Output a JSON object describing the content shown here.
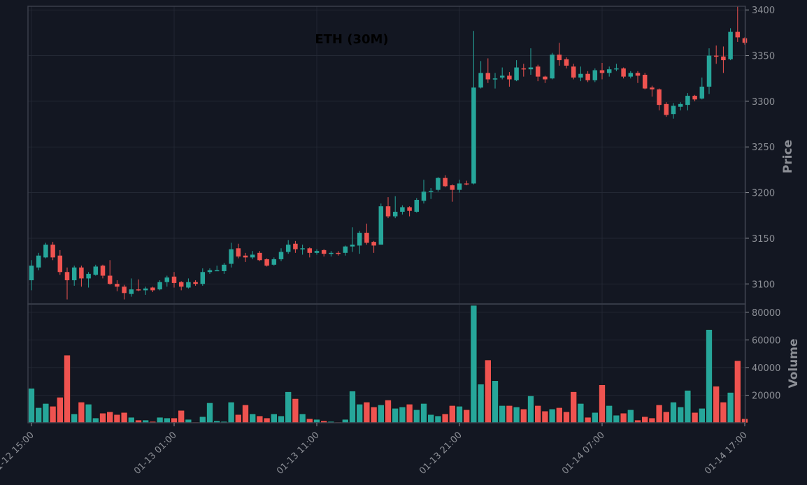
{
  "chart_data": {
    "type": "candlestick",
    "title": "ETH (30M)",
    "price_label": "Price",
    "volume_label": "Volume",
    "price_ylim": [
      3078,
      3404
    ],
    "volume_ylim": [
      0,
      86000
    ],
    "price_ticks": [
      3100,
      3150,
      3200,
      3250,
      3300,
      3350,
      3400
    ],
    "volume_ticks": [
      20000,
      40000,
      60000,
      80000
    ],
    "x_tick_labels": [
      {
        "index": 0,
        "label": "01-12 15:00"
      },
      {
        "index": 20,
        "label": "01-13 01:00"
      },
      {
        "index": 40,
        "label": "01-13 11:00"
      },
      {
        "index": 60,
        "label": "01-13 21:00"
      },
      {
        "index": 80,
        "label": "01-14 07:00"
      },
      {
        "index": 100,
        "label": "01-14 17:00"
      }
    ],
    "grid": true,
    "colors": {
      "up": "#26a69a",
      "down": "#ef5350",
      "grid": "#262b37",
      "border": "#3a3f4b",
      "text": "#8c8f96",
      "background": "#131722"
    },
    "candles": [
      [
        3104,
        3120,
        3093,
        3126,
        25000
      ],
      [
        3118,
        3131,
        3115,
        3134,
        11000
      ],
      [
        3129,
        3143,
        3128,
        3145,
        14000
      ],
      [
        3143,
        3129,
        3126,
        3146,
        12000
      ],
      [
        3131,
        3113,
        3110,
        3137,
        18500
      ],
      [
        3113,
        3104,
        3083,
        3118,
        49000
      ],
      [
        3104,
        3118,
        3098,
        3120,
        6500
      ],
      [
        3118,
        3106,
        3097,
        3120,
        15000
      ],
      [
        3106,
        3111,
        3096,
        3113,
        13500
      ],
      [
        3110,
        3119,
        3109,
        3121,
        3500
      ],
      [
        3120,
        3109,
        3106,
        3121,
        7000
      ],
      [
        3109,
        3100,
        3099,
        3126,
        8000
      ],
      [
        3100,
        3097,
        3092,
        3104,
        6000
      ],
      [
        3097,
        3090,
        3083,
        3099,
        7500
      ],
      [
        3089,
        3094,
        3086,
        3106,
        4000
      ],
      [
        3094,
        3093,
        3092,
        3105,
        2000
      ],
      [
        3093,
        3095,
        3088,
        3097,
        2000
      ],
      [
        3096,
        3093,
        3091,
        3097,
        1000
      ],
      [
        3094,
        3102,
        3093,
        3104,
        4000
      ],
      [
        3102,
        3107,
        3097,
        3109,
        3500
      ],
      [
        3108,
        3101,
        3096,
        3113,
        3500
      ],
      [
        3102,
        3097,
        3093,
        3103,
        9000
      ],
      [
        3096,
        3102,
        3095,
        3106,
        2500
      ],
      [
        3102,
        3100,
        3098,
        3104,
        500
      ],
      [
        3100,
        3113,
        3098,
        3117,
        4500
      ],
      [
        3113,
        3115,
        3111,
        3117,
        14500
      ],
      [
        3115,
        3115,
        3114,
        3120,
        1500
      ],
      [
        3114,
        3121,
        3111,
        3123,
        1000
      ],
      [
        3122,
        3138,
        3118,
        3145,
        15000
      ],
      [
        3139,
        3130,
        3128,
        3144,
        6000
      ],
      [
        3131,
        3129,
        3124,
        3134,
        13000
      ],
      [
        3129,
        3132,
        3127,
        3136,
        6500
      ],
      [
        3134,
        3126,
        3125,
        3136,
        5000
      ],
      [
        3127,
        3120,
        3119,
        3128,
        3500
      ],
      [
        3121,
        3127,
        3120,
        3129,
        6500
      ],
      [
        3127,
        3135,
        3125,
        3139,
        5000
      ],
      [
        3135,
        3143,
        3133,
        3148,
        22500
      ],
      [
        3144,
        3138,
        3134,
        3147,
        17500
      ],
      [
        3138,
        3139,
        3132,
        3143,
        6500
      ],
      [
        3139,
        3134,
        3129,
        3140,
        3000
      ],
      [
        3134,
        3136,
        3132,
        3138,
        2500
      ],
      [
        3137,
        3133,
        3130,
        3138,
        1500
      ],
      [
        3134,
        3134,
        3130,
        3136,
        1000
      ],
      [
        3134,
        3133,
        3131,
        3136,
        500
      ],
      [
        3134,
        3141,
        3131,
        3142,
        2500
      ],
      [
        3141,
        3143,
        3135,
        3162,
        23000
      ],
      [
        3142,
        3156,
        3133,
        3158,
        13500
      ],
      [
        3156,
        3145,
        3143,
        3166,
        15000
      ],
      [
        3146,
        3142,
        3134,
        3147,
        11500
      ],
      [
        3143,
        3185,
        3143,
        3188,
        13000
      ],
      [
        3185,
        3174,
        3172,
        3195,
        16500
      ],
      [
        3174,
        3179,
        3172,
        3196,
        10500
      ],
      [
        3179,
        3184,
        3176,
        3186,
        11500
      ],
      [
        3184,
        3180,
        3174,
        3185,
        13500
      ],
      [
        3179,
        3192,
        3178,
        3194,
        9500
      ],
      [
        3191,
        3201,
        3188,
        3214,
        14000
      ],
      [
        3201,
        3202,
        3193,
        3205,
        6000
      ],
      [
        3203,
        3216,
        3201,
        3217,
        5000
      ],
      [
        3216,
        3207,
        3206,
        3219,
        6500
      ],
      [
        3208,
        3203,
        3190,
        3209,
        12500
      ],
      [
        3203,
        3210,
        3200,
        3214,
        12000
      ],
      [
        3210,
        3209,
        3208,
        3213,
        9500
      ],
      [
        3210,
        3315,
        3209,
        3377,
        85000
      ],
      [
        3315,
        3331,
        3314,
        3344,
        28000
      ],
      [
        3331,
        3324,
        3320,
        3347,
        45500
      ],
      [
        3325,
        3325,
        3314,
        3331,
        30500
      ],
      [
        3326,
        3328,
        3324,
        3337,
        12500
      ],
      [
        3328,
        3324,
        3316,
        3332,
        12500
      ],
      [
        3323,
        3337,
        3322,
        3345,
        11500
      ],
      [
        3336,
        3335,
        3327,
        3341,
        10000
      ],
      [
        3335,
        3337,
        3329,
        3358,
        19500
      ],
      [
        3338,
        3327,
        3322,
        3340,
        12500
      ],
      [
        3327,
        3324,
        3320,
        3328,
        8500
      ],
      [
        3325,
        3351,
        3324,
        3353,
        10000
      ],
      [
        3351,
        3345,
        3339,
        3364,
        11000
      ],
      [
        3346,
        3339,
        3336,
        3348,
        8000
      ],
      [
        3338,
        3326,
        3324,
        3341,
        22500
      ],
      [
        3326,
        3330,
        3322,
        3338,
        14000
      ],
      [
        3330,
        3323,
        3321,
        3333,
        4000
      ],
      [
        3323,
        3334,
        3321,
        3336,
        7500
      ],
      [
        3334,
        3331,
        3324,
        3342,
        27500
      ],
      [
        3331,
        3335,
        3327,
        3338,
        12500
      ],
      [
        3335,
        3336,
        3333,
        3341,
        5500
      ],
      [
        3336,
        3327,
        3325,
        3337,
        7000
      ],
      [
        3327,
        3331,
        3325,
        3333,
        9500
      ],
      [
        3331,
        3328,
        3320,
        3333,
        2000
      ],
      [
        3329,
        3314,
        3313,
        3331,
        4500
      ],
      [
        3315,
        3313,
        3305,
        3317,
        3500
      ],
      [
        3313,
        3296,
        3290,
        3314,
        13000
      ],
      [
        3297,
        3285,
        3283,
        3299,
        8000
      ],
      [
        3286,
        3295,
        3281,
        3298,
        15000
      ],
      [
        3294,
        3297,
        3290,
        3299,
        11500
      ],
      [
        3296,
        3306,
        3290,
        3309,
        23500
      ],
      [
        3306,
        3302,
        3300,
        3307,
        7500
      ],
      [
        3303,
        3316,
        3302,
        3326,
        10500
      ],
      [
        3316,
        3350,
        3308,
        3358,
        67500
      ],
      [
        3350,
        3349,
        3341,
        3361,
        26500
      ],
      [
        3349,
        3345,
        3331,
        3360,
        15000
      ],
      [
        3346,
        3376,
        3345,
        3380,
        22000
      ],
      [
        3376,
        3370,
        3365,
        3404,
        45000
      ],
      [
        3369,
        3364,
        3362,
        3370,
        3000
      ]
    ]
  }
}
